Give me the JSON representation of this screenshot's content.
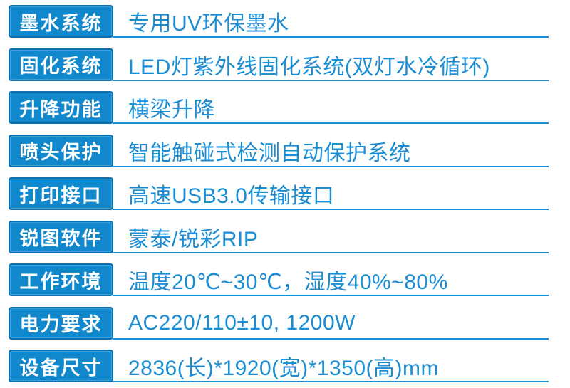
{
  "spec_sheet": {
    "rows": [
      {
        "label": "墨水系统",
        "value": "专用UV环保墨水"
      },
      {
        "label": "固化系统",
        "value": "LED灯紫外线固化系统(双灯水冷循环)"
      },
      {
        "label": "升降功能",
        "value": "横梁升降"
      },
      {
        "label": "喷头保护",
        "value": "智能触碰式检测自动保护系统"
      },
      {
        "label": "打印接口",
        "value": "高速USB3.0传输接口"
      },
      {
        "label": "锐图软件",
        "value": "蒙泰/锐彩RIP"
      },
      {
        "label": "工作环境",
        "value": "温度20℃~30℃，湿度40%~80%"
      },
      {
        "label": "电力要求",
        "value": "AC220/110±10, 1200W"
      },
      {
        "label": "设备尺寸",
        "value": "2836(长)*1920(宽)*1350(高)mm"
      }
    ],
    "colors": {
      "label_background": "#1288cc",
      "label_border": "#0d6fae",
      "value_text": "#1b8dd3",
      "divider_line": "#1b8dd3",
      "label_text": "#ffffff",
      "page_background": "#ffffff"
    }
  }
}
